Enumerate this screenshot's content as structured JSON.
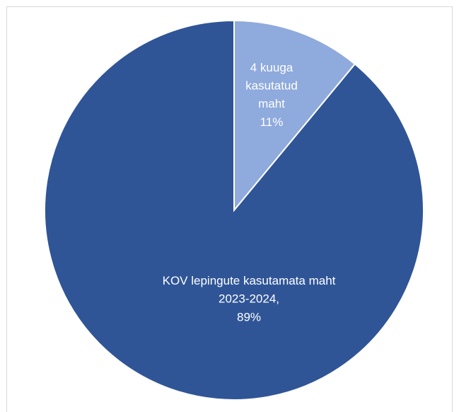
{
  "chart_data": {
    "type": "pie",
    "categories": [
      "4 kuuga kasutatud maht",
      "KOV lepingute kasutamata maht 2023-2024,"
    ],
    "values": [
      11,
      89
    ],
    "value_labels": [
      "11%",
      "89%"
    ],
    "colors": [
      "#8faadc",
      "#2f5597"
    ]
  }
}
